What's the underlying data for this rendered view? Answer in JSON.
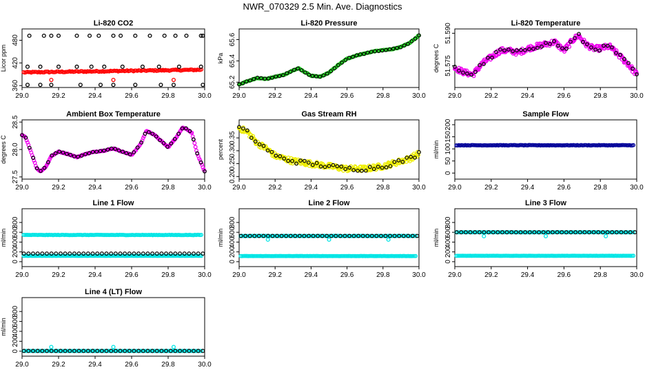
{
  "title": "NWR_070329  2.5 Min. Ave. Diagnostics",
  "chart_data": [
    {
      "type": "scatter",
      "title": "Li-820 CO2",
      "ylabel": "Licor ppm",
      "xlim": [
        29.0,
        30.0
      ],
      "ylim": [
        355,
        510
      ],
      "xticks": [
        "29.0",
        "29.2",
        "29.4",
        "29.6",
        "29.8",
        "30.0"
      ],
      "yticks": [
        360,
        420,
        480
      ],
      "yticks_labels": [
        "360",
        "420",
        "480"
      ],
      "series": [
        {
          "color": "#ff0000",
          "style": "band",
          "y_start": 395,
          "y_end": 402,
          "spread": 3
        },
        {
          "color": "#ff0000",
          "style": "points",
          "x": [
            29.16,
            29.5,
            29.83
          ],
          "y": [
            375,
            375,
            375
          ]
        },
        {
          "color": "#000000",
          "style": "points",
          "x": [
            29.04,
            29.12,
            29.16,
            29.2,
            29.3,
            29.37,
            29.42,
            29.5,
            29.54,
            29.62,
            29.7,
            29.78,
            29.84,
            29.9,
            29.98,
            29.99
          ],
          "y": [
            492,
            492,
            492,
            492,
            492,
            492,
            492,
            492,
            492,
            492,
            492,
            492,
            492,
            492,
            492,
            492
          ]
        },
        {
          "color": "#000000",
          "style": "points",
          "x": [
            29.03,
            29.1,
            29.2,
            29.3,
            29.38,
            29.45,
            29.55,
            29.66,
            29.75,
            29.86,
            29.98
          ],
          "y": [
            410,
            410,
            410,
            410,
            410,
            410,
            410,
            410,
            410,
            410,
            410
          ]
        },
        {
          "color": "#000000",
          "style": "points",
          "x": [
            29.03,
            29.1,
            29.16,
            29.32,
            29.43,
            29.5,
            29.62,
            29.76,
            29.83,
            29.99
          ],
          "y": [
            362,
            362,
            362,
            362,
            362,
            362,
            362,
            362,
            362,
            362
          ]
        }
      ]
    },
    {
      "type": "scatter",
      "title": "Li-820 Pressure",
      "ylabel": "kPa",
      "xlim": [
        29.0,
        30.0
      ],
      "ylim": [
        65.15,
        65.7
      ],
      "xticks": [
        "29.0",
        "29.2",
        "29.4",
        "29.6",
        "29.8",
        "30.0"
      ],
      "yticks": [
        65.2,
        65.4,
        65.6
      ],
      "yticks_labels": [
        "65.2",
        "65.4",
        "65.6"
      ],
      "series": [
        {
          "color": "#22cc22",
          "style": "trace",
          "x": [
            29.0,
            29.05,
            29.1,
            29.15,
            29.2,
            29.25,
            29.3,
            29.33,
            29.36,
            29.4,
            29.45,
            29.5,
            29.55,
            29.6,
            29.65,
            29.7,
            29.75,
            29.8,
            29.85,
            29.9,
            29.95,
            30.0
          ],
          "y": [
            65.18,
            65.21,
            65.24,
            65.23,
            65.25,
            65.27,
            65.31,
            65.33,
            65.3,
            65.26,
            65.25,
            65.29,
            65.36,
            65.42,
            65.45,
            65.47,
            65.49,
            65.5,
            65.51,
            65.53,
            65.57,
            65.64
          ]
        }
      ]
    },
    {
      "type": "scatter",
      "title": "Li-820 Temperature",
      "ylabel": "degrees C",
      "xlim": [
        29.0,
        30.0
      ],
      "ylim": [
        51.565,
        51.592
      ],
      "xticks": [
        "29.0",
        "29.2",
        "29.4",
        "29.6",
        "29.8",
        "30.0"
      ],
      "yticks": [
        51.575,
        51.59
      ],
      "yticks_labels": [
        "51.575",
        "51.590"
      ],
      "series": [
        {
          "color": "#ee00ee",
          "style": "noisy",
          "x": [
            29.0,
            29.05,
            29.1,
            29.15,
            29.2,
            29.25,
            29.3,
            29.35,
            29.4,
            29.45,
            29.5,
            29.55,
            29.6,
            29.65,
            29.68,
            29.72,
            29.76,
            29.8,
            29.85,
            29.9,
            29.95,
            30.0
          ],
          "y": [
            51.574,
            51.572,
            51.571,
            51.576,
            51.579,
            51.582,
            51.582,
            51.581,
            51.583,
            51.584,
            51.585,
            51.586,
            51.582,
            51.587,
            51.589,
            51.585,
            51.583,
            51.583,
            51.584,
            51.58,
            51.576,
            51.571
          ]
        }
      ]
    },
    {
      "type": "scatter",
      "title": "Ambient Box Temperature",
      "ylabel": "degrees C",
      "xlim": [
        29.0,
        30.0
      ],
      "ylim": [
        27.46,
        28.54
      ],
      "xticks": [
        "29.0",
        "29.2",
        "29.4",
        "29.6",
        "29.8",
        "30.0"
      ],
      "yticks": [
        27.5,
        28.0,
        28.5
      ],
      "yticks_labels": [
        "27.5",
        "28.0",
        "28.5"
      ],
      "series": [
        {
          "color": "#ee00ee",
          "style": "trace",
          "x": [
            29.0,
            29.02,
            29.05,
            29.08,
            29.1,
            29.13,
            29.16,
            29.2,
            29.25,
            29.3,
            29.35,
            29.4,
            29.45,
            29.5,
            29.55,
            29.6,
            29.65,
            29.68,
            29.72,
            29.76,
            29.8,
            29.84,
            29.88,
            29.9,
            29.93,
            29.96,
            30.0
          ],
          "y": [
            28.26,
            28.22,
            27.95,
            27.66,
            27.6,
            27.68,
            27.88,
            27.96,
            27.92,
            27.86,
            27.92,
            27.96,
            27.98,
            28.02,
            27.96,
            27.9,
            28.1,
            28.34,
            28.28,
            28.16,
            28.04,
            28.2,
            28.4,
            28.38,
            28.3,
            27.92,
            27.6
          ]
        }
      ]
    },
    {
      "type": "scatter",
      "title": "Gas Stream RH",
      "ylabel": "percent",
      "xlim": [
        29.0,
        30.0
      ],
      "ylim": [
        0.19,
        0.42
      ],
      "xticks": [
        "29.0",
        "29.2",
        "29.4",
        "29.6",
        "29.8",
        "30.0"
      ],
      "yticks": [
        0.2,
        0.25,
        0.3,
        0.35
      ],
      "yticks_labels": [
        "0.20",
        "0.25",
        "0.30",
        "0.35"
      ],
      "series": [
        {
          "color": "#eeee00",
          "style": "noisy",
          "x": [
            29.0,
            29.05,
            29.1,
            29.15,
            29.2,
            29.3,
            29.4,
            29.5,
            29.6,
            29.7,
            29.8,
            29.9,
            29.95,
            30.0
          ],
          "y": [
            0.39,
            0.37,
            0.33,
            0.31,
            0.28,
            0.26,
            0.25,
            0.24,
            0.23,
            0.23,
            0.24,
            0.26,
            0.27,
            0.29
          ]
        }
      ]
    },
    {
      "type": "scatter",
      "title": "Sample Flow",
      "ylabel": "ml/min",
      "xlim": [
        29.0,
        30.0
      ],
      "ylim": [
        -25,
        220
      ],
      "xticks": [
        "29.0",
        "29.2",
        "29.4",
        "29.6",
        "29.8",
        "30.0"
      ],
      "yticks": [
        0,
        50,
        100,
        150,
        200
      ],
      "yticks_labels": [
        "0",
        "50",
        "100",
        "150",
        "200"
      ],
      "series": [
        {
          "color": "#000099",
          "style": "band",
          "y_start": 115,
          "y_end": 115,
          "spread": 2
        }
      ]
    },
    {
      "type": "scatter",
      "title": "Line 1 Flow",
      "ylabel": "ml/min",
      "xlim": [
        29.0,
        30.0
      ],
      "ylim": [
        -100,
        1080
      ],
      "xticks": [
        "29.0",
        "29.2",
        "29.4",
        "29.6",
        "29.8",
        "30.0"
      ],
      "yticks": [
        0,
        200,
        400,
        600,
        800
      ],
      "yticks_labels": [
        "0",
        "200",
        "400",
        "600",
        "800"
      ],
      "series": [
        {
          "color": "#00e5e5",
          "style": "band",
          "y_start": 545,
          "y_end": 545,
          "spread": 8
        },
        {
          "color": "#00e5e5",
          "style": "band",
          "y_start": 120,
          "y_end": 120,
          "spread": 3
        },
        {
          "color": "#000000",
          "style": "open",
          "y_start": 165,
          "y_end": 165
        }
      ]
    },
    {
      "type": "scatter",
      "title": "Line 2 Flow",
      "ylabel": "ml/min",
      "xlim": [
        29.0,
        30.0
      ],
      "ylim": [
        -100,
        1080
      ],
      "xticks": [
        "29.0",
        "29.2",
        "29.4",
        "29.6",
        "29.8",
        "30.0"
      ],
      "yticks": [
        0,
        200,
        400,
        600,
        800
      ],
      "yticks_labels": [
        "0",
        "200",
        "400",
        "600",
        "800"
      ],
      "series": [
        {
          "color": "#00e5e5",
          "style": "band",
          "y_start": 525,
          "y_end": 525,
          "spread": 5
        },
        {
          "color": "#00e5e5",
          "style": "band",
          "y_start": 115,
          "y_end": 115,
          "spread": 3
        },
        {
          "color": "#000000",
          "style": "open",
          "y_start": 525,
          "y_end": 525
        },
        {
          "color": "#00e5e5",
          "style": "points",
          "x": [
            29.16,
            29.5,
            29.83
          ],
          "y": [
            450,
            450,
            450
          ]
        }
      ]
    },
    {
      "type": "scatter",
      "title": "Line 3 Flow",
      "ylabel": "ml/min",
      "xlim": [
        29.0,
        30.0
      ],
      "ylim": [
        -100,
        1080
      ],
      "xticks": [
        "29.0",
        "29.2",
        "29.4",
        "29.6",
        "29.8",
        "30.0"
      ],
      "yticks": [
        0,
        200,
        400,
        600,
        800
      ],
      "yticks_labels": [
        "0",
        "200",
        "400",
        "600",
        "800"
      ],
      "series": [
        {
          "color": "#00e5e5",
          "style": "band",
          "y_start": 600,
          "y_end": 600,
          "spread": 5
        },
        {
          "color": "#00e5e5",
          "style": "band",
          "y_start": 120,
          "y_end": 120,
          "spread": 3
        },
        {
          "color": "#000000",
          "style": "open",
          "y_start": 600,
          "y_end": 600
        },
        {
          "color": "#00e5e5",
          "style": "points",
          "x": [
            29.16,
            29.5,
            29.83
          ],
          "y": [
            520,
            520,
            520
          ]
        }
      ]
    },
    {
      "type": "scatter",
      "title": "Line 4 (LT) Flow",
      "ylabel": "ml/min",
      "xlim": [
        29.0,
        30.0
      ],
      "ylim": [
        -100,
        1080
      ],
      "xticks": [
        "29.0",
        "29.2",
        "29.4",
        "29.6",
        "29.8",
        "30.0"
      ],
      "yticks": [
        0,
        200,
        400,
        600,
        800
      ],
      "yticks_labels": [
        "0",
        "200",
        "400",
        "600",
        "800"
      ],
      "series": [
        {
          "color": "#00e5e5",
          "style": "band",
          "y_start": 5,
          "y_end": 5,
          "spread": 2
        },
        {
          "color": "#000000",
          "style": "open",
          "y_start": 5,
          "y_end": 5
        },
        {
          "color": "#00e5e5",
          "style": "points",
          "x": [
            29.16,
            29.5,
            29.83
          ],
          "y": [
            85,
            85,
            85
          ]
        }
      ]
    }
  ]
}
